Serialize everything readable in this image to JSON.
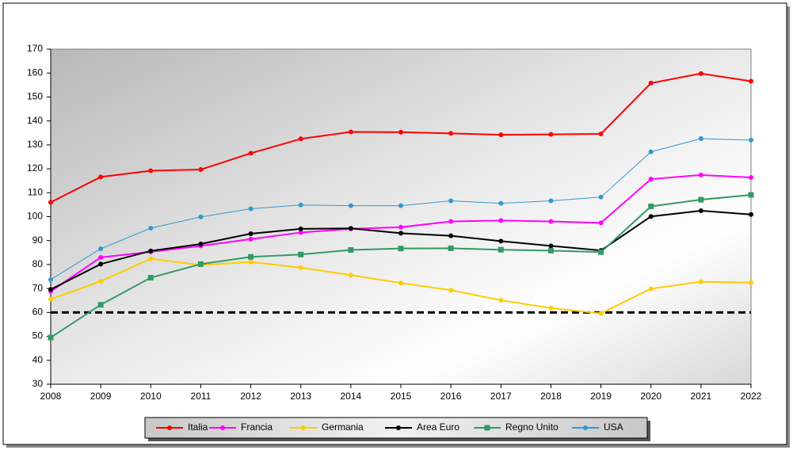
{
  "chart_data": {
    "type": "line",
    "x": [
      2008,
      2009,
      2010,
      2011,
      2012,
      2013,
      2014,
      2015,
      2016,
      2017,
      2018,
      2019,
      2020,
      2021,
      2022
    ],
    "xlim": [
      2008,
      2022
    ],
    "xticks": [
      2008,
      2009,
      2010,
      2011,
      2012,
      2013,
      2014,
      2015,
      2016,
      2017,
      2018,
      2019,
      2020,
      2021,
      2022
    ],
    "ylim": [
      30,
      170
    ],
    "yticks": [
      30,
      40,
      50,
      60,
      70,
      80,
      90,
      100,
      110,
      120,
      130,
      140,
      150,
      160,
      170
    ],
    "reference_line": 60,
    "legend": "bottom",
    "series": [
      {
        "name": "Italia",
        "color": "#ff0000",
        "marker": "circle",
        "values": [
          106.0,
          116.6,
          119.2,
          119.7,
          126.5,
          132.5,
          135.4,
          135.3,
          134.8,
          134.2,
          134.4,
          134.6,
          155.8,
          159.8,
          156.6
        ]
      },
      {
        "name": "Francia",
        "color": "#ff00ff",
        "marker": "circle",
        "values": [
          68.8,
          83.0,
          85.3,
          87.8,
          90.6,
          93.4,
          94.9,
          95.6,
          98.0,
          98.4,
          98.0,
          97.4,
          115.7,
          117.4,
          116.4
        ]
      },
      {
        "name": "Germania",
        "color": "#ffcc00",
        "marker": "circle",
        "values": [
          65.5,
          73.0,
          82.4,
          79.8,
          81.1,
          78.7,
          75.6,
          72.3,
          69.3,
          65.1,
          61.8,
          59.6,
          69.9,
          72.8,
          72.5
        ]
      },
      {
        "name": "Area Euro",
        "color": "#000000",
        "marker": "circle",
        "values": [
          69.6,
          80.2,
          85.7,
          88.6,
          92.9,
          94.9,
          95.1,
          93.1,
          92.0,
          89.8,
          87.8,
          85.9,
          100.1,
          102.5,
          100.9
        ]
      },
      {
        "name": "Regno Unito",
        "color": "#339966",
        "marker": "square",
        "values": [
          49.5,
          63.2,
          74.5,
          80.2,
          83.2,
          84.2,
          86.1,
          86.7,
          86.8,
          86.2,
          85.8,
          85.2,
          104.3,
          107.1,
          109.1
        ]
      },
      {
        "name": "USA",
        "color": "#3399cc",
        "marker": "circle",
        "values": [
          73.7,
          86.6,
          95.2,
          99.9,
          103.3,
          104.9,
          104.6,
          104.6,
          106.6,
          105.6,
          106.6,
          108.2,
          127.1,
          132.6,
          132.0
        ]
      }
    ]
  }
}
